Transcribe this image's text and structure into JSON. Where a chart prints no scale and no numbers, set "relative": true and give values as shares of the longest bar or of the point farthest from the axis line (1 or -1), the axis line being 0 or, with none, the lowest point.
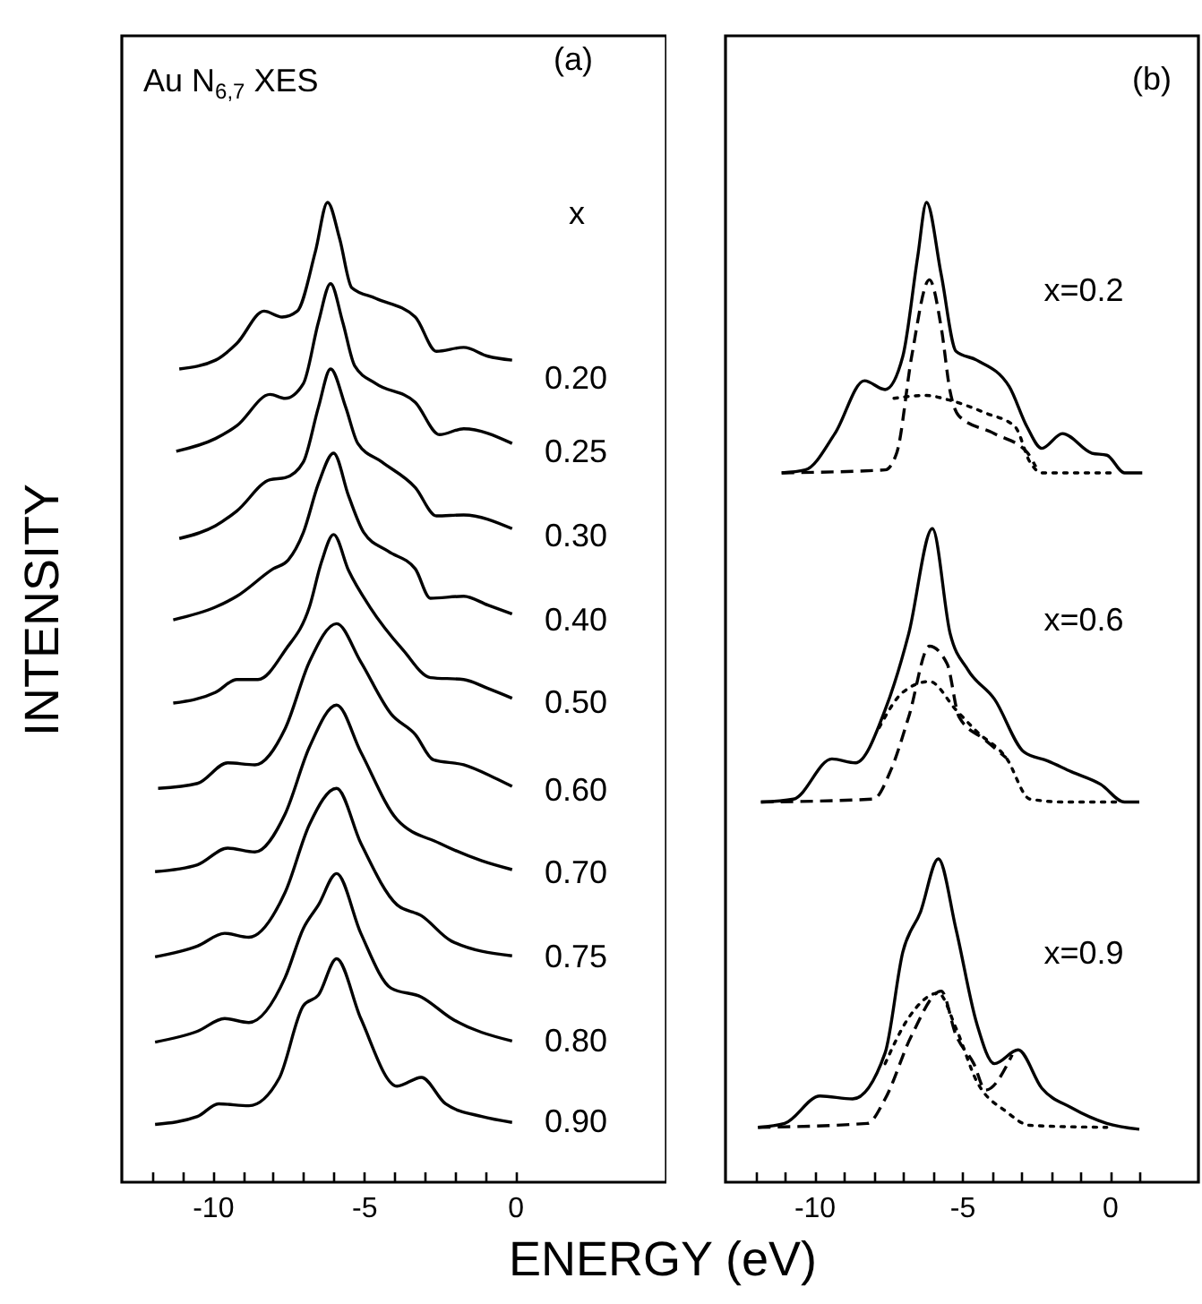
{
  "chart_data": [
    {
      "type": "line",
      "xlabel": "ENERGY (eV)",
      "ylabel": "INTENSITY",
      "relative": true,
      "xlim": [
        -13,
        5
      ],
      "xticks": [
        {
          "value": -12,
          "label": null
        },
        {
          "value": -11,
          "label": null
        },
        -10,
        {
          "value": -9,
          "label": null
        },
        {
          "value": -8,
          "label": null
        },
        {
          "value": -7,
          "label": null
        },
        {
          "value": -6,
          "label": null
        },
        -5,
        {
          "value": -4,
          "label": null
        },
        {
          "value": -3,
          "label": null
        },
        {
          "value": -2,
          "label": null
        },
        {
          "value": -1,
          "label": null
        },
        0
      ],
      "series": [
        {
          "color": "#000000",
          "x": [
            -11.1,
            -9.9,
            -9.2,
            -8.3,
            -7.7,
            -7.2,
            -6.6,
            -6.2,
            -5.8,
            -5.4,
            -4.6,
            -3.3,
            -2.6,
            -1.7,
            -0.9,
            -0.1
          ],
          "values": [
            0.83,
            0.839,
            0.856,
            0.889,
            0.883,
            0.889,
            0.95,
            1.0,
            0.963,
            0.913,
            0.902,
            0.883,
            0.848,
            0.852,
            0.843,
            0.839
          ]
        },
        {
          "color": "#000000",
          "x": [
            -11.2,
            -9.9,
            -9.2,
            -8.1,
            -7.6,
            -7.0,
            -6.5,
            -6.1,
            -5.7,
            -5.3,
            -4.6,
            -3.3,
            -2.5,
            -1.7,
            -0.1
          ],
          "values": [
            0.746,
            0.759,
            0.772,
            0.804,
            0.8,
            0.815,
            0.878,
            0.917,
            0.878,
            0.833,
            0.815,
            0.796,
            0.763,
            0.769,
            0.754
          ]
        },
        {
          "color": "#000000",
          "x": [
            -11.1,
            -9.9,
            -9.2,
            -8.1,
            -7.6,
            -7.0,
            -6.5,
            -6.1,
            -5.6,
            -5.2,
            -4.4,
            -3.3,
            -2.6,
            -1.7,
            -0.1
          ],
          "values": [
            0.657,
            0.67,
            0.685,
            0.717,
            0.719,
            0.735,
            0.791,
            0.83,
            0.791,
            0.754,
            0.735,
            0.709,
            0.68,
            0.681,
            0.667
          ]
        },
        {
          "color": "#000000",
          "x": [
            -11.3,
            -9.9,
            -9.2,
            -8.0,
            -7.5,
            -7.0,
            -6.5,
            -6.0,
            -5.5,
            -5.0,
            -4.2,
            -3.3,
            -2.8,
            -1.7,
            -0.9,
            -0.1
          ],
          "values": [
            0.574,
            0.587,
            0.598,
            0.626,
            0.635,
            0.663,
            0.713,
            0.744,
            0.7,
            0.663,
            0.644,
            0.626,
            0.596,
            0.598,
            0.589,
            0.58
          ]
        },
        {
          "color": "#000000",
          "x": [
            -11.3,
            -9.9,
            -9.2,
            -8.5,
            -7.6,
            -6.8,
            -6.4,
            -6.0,
            -5.5,
            -4.8,
            -3.7,
            -2.8,
            -1.7,
            -0.9,
            -0.1
          ],
          "values": [
            0.489,
            0.5,
            0.513,
            0.513,
            0.543,
            0.587,
            0.633,
            0.661,
            0.624,
            0.587,
            0.543,
            0.515,
            0.513,
            0.504,
            0.494
          ]
        },
        {
          "color": "#000000",
          "x": [
            -11.8,
            -10.5,
            -9.5,
            -8.6,
            -7.6,
            -6.8,
            -5.9,
            -5.1,
            -4.1,
            -3.3,
            -2.7,
            -1.7,
            -0.7,
            -0.1
          ],
          "values": [
            0.402,
            0.407,
            0.428,
            0.426,
            0.463,
            0.531,
            0.57,
            0.531,
            0.478,
            0.457,
            0.431,
            0.426,
            0.413,
            0.404
          ]
        },
        {
          "color": "#000000",
          "x": [
            -11.9,
            -10.5,
            -9.5,
            -8.6,
            -7.6,
            -6.8,
            -5.9,
            -5.1,
            -3.9,
            -2.5,
            -1.1,
            -0.1
          ],
          "values": [
            0.317,
            0.324,
            0.341,
            0.337,
            0.376,
            0.444,
            0.487,
            0.439,
            0.37,
            0.346,
            0.328,
            0.319
          ]
        },
        {
          "color": "#000000",
          "x": [
            -11.9,
            -10.5,
            -9.6,
            -8.8,
            -7.6,
            -6.8,
            -5.9,
            -5.1,
            -3.9,
            -3.1,
            -2.1,
            -0.1
          ],
          "values": [
            0.23,
            0.241,
            0.254,
            0.25,
            0.296,
            0.365,
            0.402,
            0.346,
            0.283,
            0.272,
            0.246,
            0.231
          ]
        },
        {
          "color": "#000000",
          "x": [
            -11.9,
            -10.5,
            -9.6,
            -8.8,
            -7.6,
            -7.0,
            -6.5,
            -5.9,
            -5.1,
            -4.1,
            -3.1,
            -2.1,
            -0.1
          ],
          "values": [
            0.143,
            0.154,
            0.167,
            0.163,
            0.209,
            0.259,
            0.283,
            0.315,
            0.254,
            0.198,
            0.189,
            0.167,
            0.144
          ]
        },
        {
          "color": "#000000",
          "x": [
            -11.9,
            -10.5,
            -9.8,
            -8.8,
            -7.8,
            -7.0,
            -6.5,
            -5.9,
            -5.1,
            -3.9,
            -3.1,
            -2.3,
            -1.1,
            -0.1
          ],
          "values": [
            0.059,
            0.067,
            0.08,
            0.078,
            0.106,
            0.18,
            0.191,
            0.228,
            0.167,
            0.098,
            0.107,
            0.08,
            0.067,
            0.061
          ]
        }
      ],
      "annotations": [
        "Au N$_{6,7}$ XES",
        "(a)",
        "x",
        "0.20",
        "0.25",
        "0.30",
        "0.40",
        "0.50",
        "0.60",
        "0.70",
        "0.75",
        "0.80",
        "0.90"
      ]
    },
    {
      "type": "line",
      "relative": true,
      "xlim": [
        -13,
        3
      ],
      "xticks": [
        {
          "value": -12,
          "label": null
        },
        {
          "value": -11,
          "label": null
        },
        -10,
        {
          "value": -9,
          "label": null
        },
        {
          "value": -8,
          "label": null
        },
        {
          "value": -7,
          "label": null
        },
        {
          "value": -6,
          "label": null
        },
        -5,
        {
          "value": -4,
          "label": null
        },
        {
          "value": -3,
          "label": null
        },
        {
          "value": -2,
          "label": null
        },
        {
          "value": -1,
          "label": null
        },
        0,
        {
          "value": 1,
          "label": null
        }
      ],
      "series": [
        {
          "color": "#000000",
          "line_style": "solid",
          "x": [
            -11.1,
            -10.3,
            -9.3,
            -8.3,
            -7.6,
            -7.0,
            -6.5,
            -6.2,
            -5.7,
            -5.2,
            -4.5,
            -3.4,
            -2.8,
            -2.3,
            -1.6,
            -0.6,
            -0.1,
            0.5,
            1.1
          ],
          "values": [
            0.724,
            0.727,
            0.764,
            0.818,
            0.809,
            0.843,
            0.944,
            1.0,
            0.926,
            0.848,
            0.839,
            0.812,
            0.771,
            0.749,
            0.764,
            0.744,
            0.742,
            0.724,
            0.724
          ]
        },
        {
          "color": "#000000",
          "line_style": "dashed",
          "x": [
            -11.1,
            -7.6,
            -7.2,
            -6.7,
            -6.1,
            -5.7,
            -5.4,
            -5.1,
            -3.9,
            -2.8,
            -2.5
          ],
          "values": [
            0.724,
            0.727,
            0.745,
            0.843,
            0.921,
            0.872,
            0.807,
            0.782,
            0.764,
            0.745,
            0.73
          ]
        },
        {
          "color": "#000000",
          "line_style": "dotted",
          "x": [
            -7.3,
            -6.25,
            -5.4,
            -4.2,
            -3.2,
            -2.7,
            -2.3,
            0.1
          ],
          "values": [
            0.8,
            0.803,
            0.798,
            0.785,
            0.771,
            0.735,
            0.724,
            0.724
          ]
        },
        {
          "color": "#000000",
          "line_style": "solid",
          "x": [
            -11.8,
            -10.7,
            -9.4,
            -8.6,
            -7.6,
            -6.8,
            -6.0,
            -5.4,
            -4.8,
            -3.9,
            -2.9,
            -2.1,
            -1.3,
            -0.3,
            0.5,
            1.0
          ],
          "values": [
            0.388,
            0.391,
            0.432,
            0.428,
            0.482,
            0.56,
            0.667,
            0.56,
            0.523,
            0.493,
            0.439,
            0.43,
            0.419,
            0.406,
            0.388,
            0.388
          ]
        },
        {
          "color": "#000000",
          "line_style": "dashed",
          "x": [
            -11.8,
            -8.0,
            -7.4,
            -6.8,
            -6.1,
            -5.5,
            -5.1,
            -4.2,
            -3.5
          ],
          "values": [
            0.388,
            0.391,
            0.421,
            0.475,
            0.547,
            0.529,
            0.475,
            0.451,
            0.433
          ]
        },
        {
          "color": "#000000",
          "line_style": "dotted",
          "x": [
            -7.8,
            -7.0,
            -6.1,
            -5.2,
            -4.5,
            -3.5,
            -2.7,
            -1.5,
            0.3
          ],
          "values": [
            0.464,
            0.5,
            0.511,
            0.482,
            0.46,
            0.433,
            0.391,
            0.388,
            0.388
          ]
        },
        {
          "color": "#000000",
          "line_style": "solid",
          "x": [
            -11.9,
            -11.0,
            -9.8,
            -8.7,
            -7.6,
            -7.0,
            -6.4,
            -5.8,
            -5.2,
            -4.5,
            -3.9,
            -3.1,
            -2.3,
            -1.3,
            -0.1,
            1.0
          ],
          "values": [
            0.056,
            0.06,
            0.088,
            0.085,
            0.132,
            0.235,
            0.276,
            0.33,
            0.258,
            0.162,
            0.121,
            0.135,
            0.096,
            0.076,
            0.06,
            0.054
          ]
        },
        {
          "color": "#000000",
          "line_style": "dashed",
          "x": [
            -11.9,
            -8.2,
            -7.6,
            -6.7,
            -5.7,
            -5.2,
            -4.6,
            -4.2,
            -3.3
          ],
          "values": [
            0.056,
            0.06,
            0.085,
            0.15,
            0.195,
            0.15,
            0.121,
            0.094,
            0.13
          ]
        },
        {
          "color": "#000000",
          "line_style": "dotted",
          "x": [
            -7.6,
            -6.8,
            -5.8,
            -5.2,
            -4.5,
            -3.5,
            -2.7,
            -0.1
          ],
          "values": [
            0.121,
            0.168,
            0.193,
            0.157,
            0.103,
            0.072,
            0.058,
            0.056
          ]
        }
      ],
      "annotations": [
        "(b)",
        "x=0.2",
        "x=0.6",
        "x=0.9"
      ]
    }
  ]
}
